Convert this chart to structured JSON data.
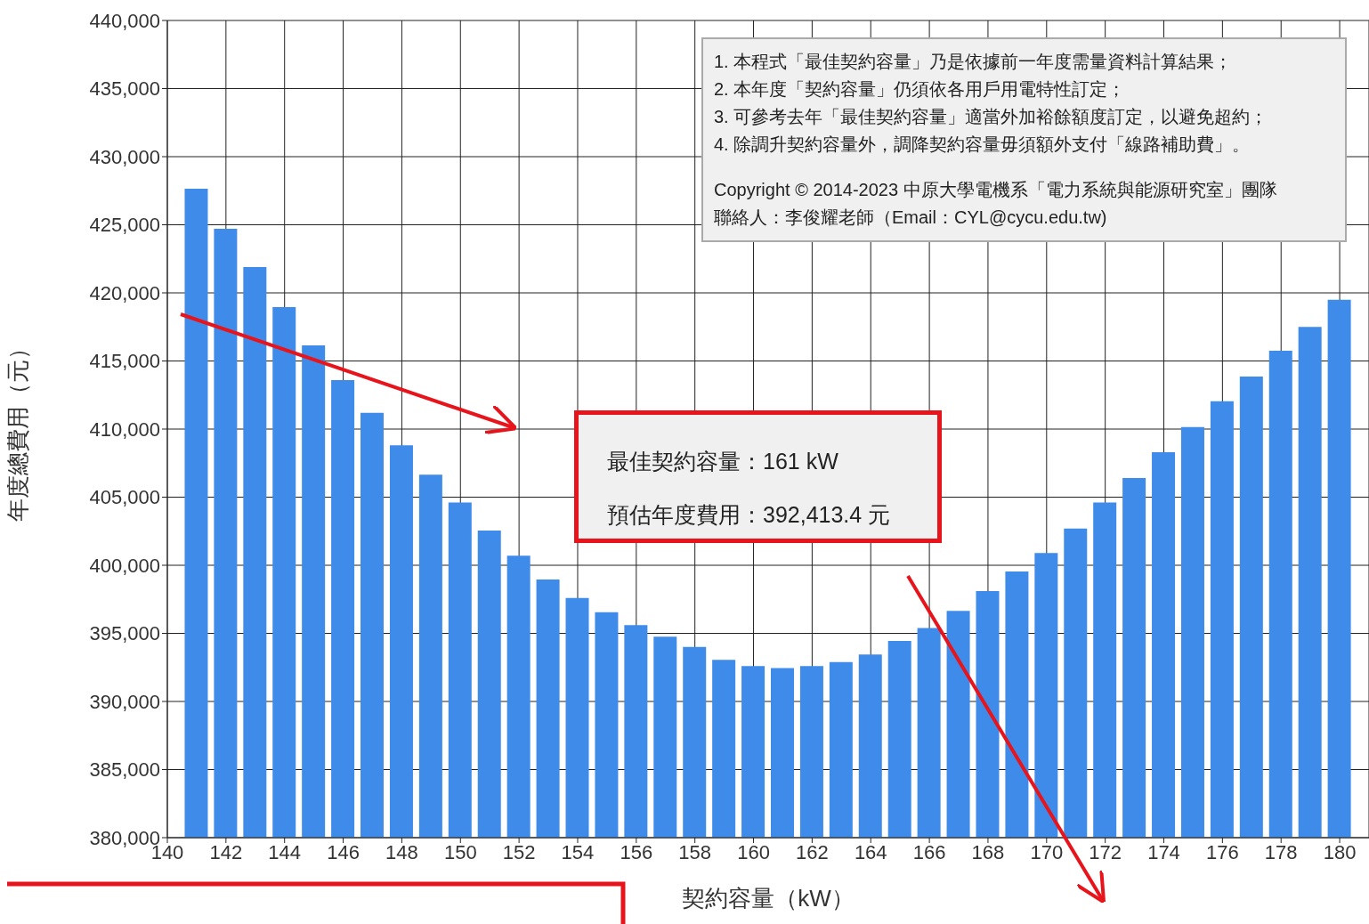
{
  "chart_data": {
    "type": "bar",
    "xlabel": "契約容量（kW）",
    "ylabel": "年度總費用（元）",
    "x": [
      141,
      142,
      143,
      144,
      145,
      146,
      147,
      148,
      149,
      150,
      151,
      152,
      153,
      154,
      155,
      156,
      157,
      158,
      159,
      160,
      161,
      162,
      163,
      164,
      165,
      166,
      167,
      168,
      169,
      170,
      171,
      172,
      173,
      174,
      175,
      176,
      177,
      178,
      179,
      180
    ],
    "values": [
      427650,
      424700,
      421900,
      418950,
      416150,
      413600,
      411200,
      408800,
      406650,
      404600,
      402550,
      400700,
      398950,
      397600,
      396550,
      395600,
      394750,
      394000,
      393050,
      392600,
      392450,
      392600,
      392900,
      393450,
      394450,
      395400,
      396650,
      398100,
      399550,
      400900,
      402700,
      404600,
      406400,
      408300,
      410150,
      412050,
      413850,
      415750,
      417500,
      419500
    ],
    "color": "#3f8bea",
    "xlim": [
      140,
      181
    ],
    "xticks": [
      140,
      142,
      144,
      146,
      148,
      150,
      152,
      154,
      156,
      158,
      160,
      162,
      164,
      166,
      168,
      170,
      172,
      174,
      176,
      178,
      180
    ],
    "ylim": [
      380000,
      440000
    ],
    "yticks": [
      {
        "value": 380000,
        "label": "380,000"
      },
      {
        "value": 385000,
        "label": "385,000"
      },
      {
        "value": 390000,
        "label": "390,000"
      },
      {
        "value": 395000,
        "label": "395,000"
      },
      {
        "value": 400000,
        "label": "400,000"
      },
      {
        "value": 405000,
        "label": "405,000"
      },
      {
        "value": 410000,
        "label": "410,000"
      },
      {
        "value": 415000,
        "label": "415,000"
      },
      {
        "value": 420000,
        "label": "420,000"
      },
      {
        "value": 425000,
        "label": "425,000"
      },
      {
        "value": 430000,
        "label": "430,000"
      },
      {
        "value": 435000,
        "label": "435,000"
      },
      {
        "value": 440000,
        "label": "440,000"
      }
    ],
    "grid": true,
    "annotations": [
      "1. 本程式「最佳契約容量」乃是依據前一年度需量資料計算結果；",
      "2. 本年度「契約容量」仍須依各用戶用電特性訂定；",
      "3. 可參考去年「最佳契約容量」適當外加裕餘額度訂定，以避免超約；",
      "4. 除調升契約容量外，調降契約容量毋須額外支付「線路補助費」。",
      "Copyright © 2014-2023 中原大學電機系「電力系統與能源研究室」團隊",
      "聯絡人：李俊耀老師（Email：CYL@cycu.edu.tw)",
      "最佳契約容量：161 kW",
      "預估年度費用：392,413.4 元"
    ]
  }
}
